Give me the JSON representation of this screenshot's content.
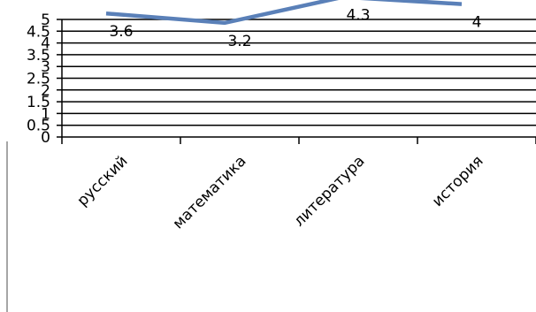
{
  "chart_data": {
    "type": "line",
    "categories": [
      "русский",
      "математика",
      "литература",
      "история"
    ],
    "series": [
      {
        "name": "",
        "color": "#5a80b8",
        "values": [
          3.6,
          3.2,
          4.3,
          4
        ]
      }
    ],
    "ylim": [
      0,
      5
    ],
    "yticks": [
      0,
      0.5,
      1,
      1.5,
      2,
      2.5,
      3,
      3.5,
      4,
      4.5,
      5
    ],
    "grid": true
  }
}
